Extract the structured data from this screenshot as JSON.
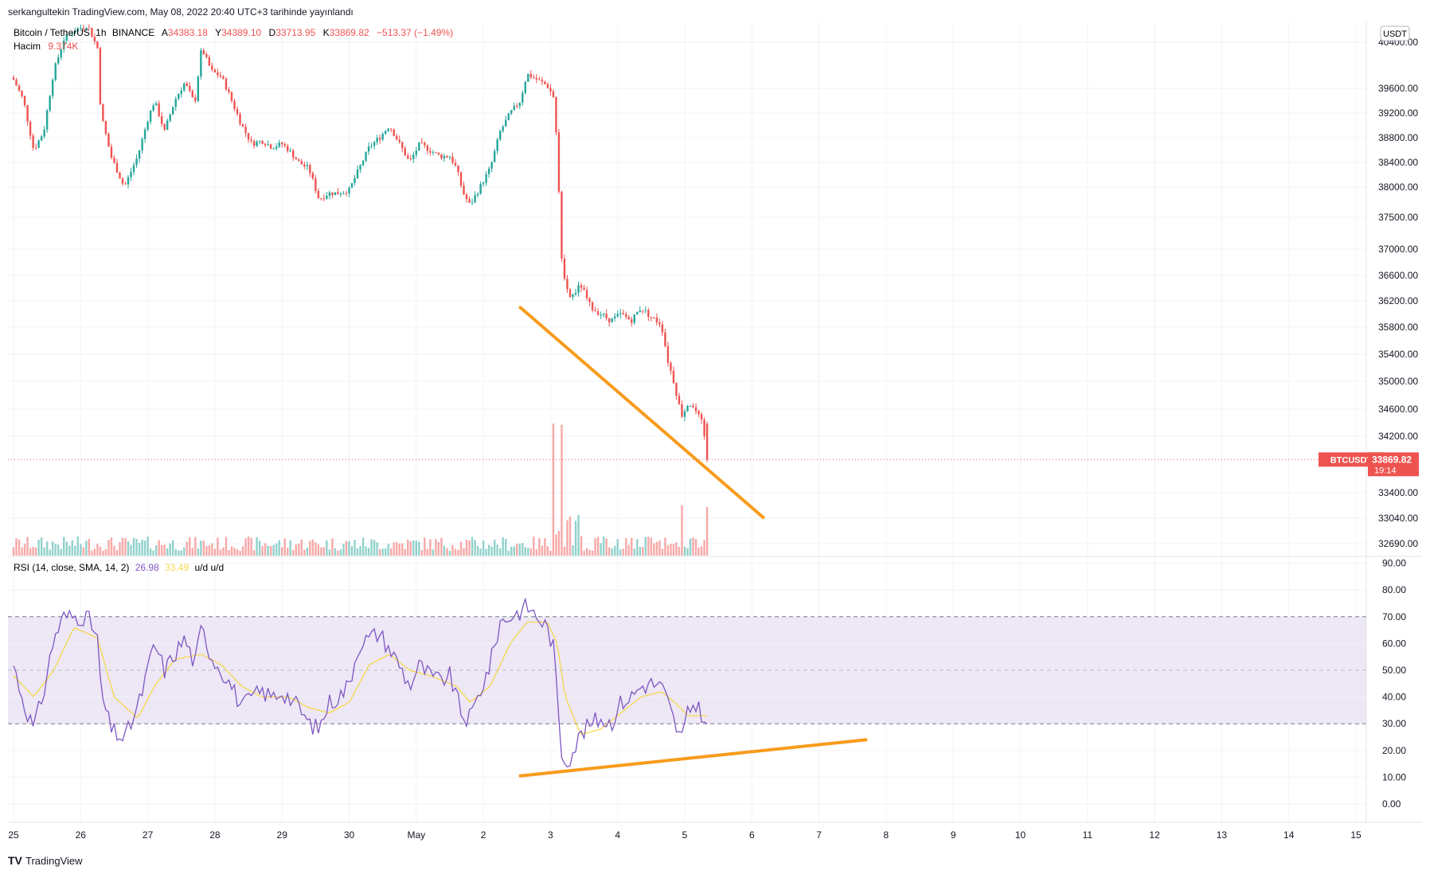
{
  "header": {
    "published_by": "serkangultekin TradingView.com, May 08, 2022 20:40 UTC+3 tarihinde yayınlandı"
  },
  "legend": {
    "symbol": "Bitcoin / TetherUS",
    "interval": "1h",
    "exchange": "BINANCE",
    "open_label": "A",
    "open": "34383.18",
    "high_label": "Y",
    "high": "34389.10",
    "low_label": "D",
    "low": "33713.95",
    "close_label": "K",
    "close": "33869.82",
    "change": "−513.37 (−1.49%)",
    "volume_label": "Hacim",
    "volume": "9.374K"
  },
  "rsi_legend": {
    "name": "RSI (14, close, SMA, 14, 2)",
    "rsi": "26.98",
    "sma": "33.49",
    "extra": "u/d u/d"
  },
  "currency_badge": "USDT",
  "price_tag": {
    "symbol": "BTCUSDT",
    "price": "33869.82",
    "countdown": "19:14"
  },
  "footer": {
    "brand": "TradingView",
    "logo": "tradingview-logo"
  },
  "colors": {
    "up": "#26a69a",
    "down": "#ef5350",
    "rsi": "#7e57c2",
    "rsi_sma": "#f5d94a",
    "trendline": "#f89b1c",
    "rsi_band": "#ede7f6"
  },
  "chart_data": [
    {
      "type": "candlestick",
      "title": "Bitcoin / TetherUS, 1h, BINANCE",
      "y_ticks": [
        "40400.00",
        "39600.00",
        "39200.00",
        "38800.00",
        "38400.00",
        "38000.00",
        "37500.00",
        "37000.00",
        "36600.00",
        "36200.00",
        "35800.00",
        "35400.00",
        "35000.00",
        "34600.00",
        "34200.00",
        "33400.00",
        "33040.00",
        "32690.00"
      ],
      "y_tick_values": [
        40400,
        39600,
        39200,
        38800,
        38400,
        38000,
        37500,
        37000,
        36600,
        36200,
        35800,
        35400,
        35000,
        34600,
        34200,
        33400,
        33040,
        32690
      ],
      "x_ticks": [
        "25",
        "26",
        "27",
        "28",
        "29",
        "30",
        "May",
        "2",
        "3",
        "4",
        "5",
        "6",
        "7",
        "8",
        "9",
        "10",
        "11",
        "12",
        "13",
        "14",
        "15"
      ],
      "price_path": [
        [
          0,
          39750
        ],
        [
          0.15,
          39400
        ],
        [
          0.3,
          38600
        ],
        [
          0.45,
          38900
        ],
        [
          0.6,
          39900
        ],
        [
          0.75,
          40450
        ],
        [
          0.9,
          40600
        ],
        [
          1.1,
          40700
        ],
        [
          1.25,
          40300
        ],
        [
          1.3,
          39200
        ],
        [
          1.45,
          38500
        ],
        [
          1.65,
          38000
        ],
        [
          1.85,
          38500
        ],
        [
          2.0,
          39100
        ],
        [
          2.1,
          39400
        ],
        [
          2.25,
          38900
        ],
        [
          2.4,
          39400
        ],
        [
          2.55,
          39700
        ],
        [
          2.7,
          39350
        ],
        [
          2.8,
          40300
        ],
        [
          2.95,
          39900
        ],
        [
          3.1,
          39800
        ],
        [
          3.25,
          39400
        ],
        [
          3.4,
          39000
        ],
        [
          3.55,
          38700
        ],
        [
          3.7,
          38750
        ],
        [
          3.85,
          38650
        ],
        [
          4.0,
          38700
        ],
        [
          4.1,
          38600
        ],
        [
          4.25,
          38400
        ],
        [
          4.4,
          38300
        ],
        [
          4.55,
          37800
        ],
        [
          4.7,
          37900
        ],
        [
          4.85,
          37900
        ],
        [
          5.0,
          37950
        ],
        [
          5.15,
          38300
        ],
        [
          5.3,
          38650
        ],
        [
          5.45,
          38800
        ],
        [
          5.6,
          39000
        ],
        [
          5.75,
          38700
        ],
        [
          5.9,
          38400
        ],
        [
          6.05,
          38700
        ],
        [
          6.2,
          38600
        ],
        [
          6.35,
          38500
        ],
        [
          6.5,
          38500
        ],
        [
          6.6,
          38300
        ],
        [
          6.7,
          37900
        ],
        [
          6.8,
          37700
        ],
        [
          6.95,
          38000
        ],
        [
          7.1,
          38300
        ],
        [
          7.25,
          38900
        ],
        [
          7.4,
          39200
        ],
        [
          7.55,
          39400
        ],
        [
          7.65,
          39850
        ],
        [
          7.8,
          39750
        ],
        [
          7.95,
          39650
        ],
        [
          8.05,
          39450
        ],
        [
          8.1,
          38600
        ],
        [
          8.16,
          36950
        ],
        [
          8.22,
          36400
        ],
        [
          8.3,
          36250
        ],
        [
          8.45,
          36450
        ],
        [
          8.6,
          36100
        ],
        [
          8.75,
          36000
        ],
        [
          8.9,
          35900
        ],
        [
          9.05,
          36000
        ],
        [
          9.2,
          35900
        ],
        [
          9.35,
          36100
        ],
        [
          9.5,
          35950
        ],
        [
          9.65,
          35850
        ],
        [
          9.75,
          35300
        ],
        [
          9.85,
          34950
        ],
        [
          9.95,
          34500
        ],
        [
          10.05,
          34700
        ],
        [
          10.15,
          34600
        ],
        [
          10.25,
          34400
        ],
        [
          10.35,
          33870
        ]
      ],
      "volume_peaks": [
        [
          8.05,
          "high"
        ],
        [
          8.16,
          "high"
        ],
        [
          9.95,
          "medium"
        ],
        [
          10.35,
          "medium"
        ]
      ],
      "trendline": {
        "from": [
          7.55,
          36100
        ],
        "to": [
          11.17,
          33050
        ],
        "color": "#f89b1c"
      },
      "last_price": 33869.82
    },
    {
      "type": "line",
      "title": "RSI (14, close, SMA, 14, 2)",
      "y_ticks": [
        "90.00",
        "80.00",
        "70.00",
        "60.00",
        "50.00",
        "40.00",
        "30.00",
        "20.00",
        "10.00",
        "0.00"
      ],
      "y_tick_values": [
        90,
        80,
        70,
        60,
        50,
        40,
        30,
        20,
        10,
        0
      ],
      "band": [
        30,
        70
      ],
      "midline": 50,
      "series": [
        {
          "name": "RSI",
          "color": "#7e57c2",
          "points": [
            [
              0,
              52
            ],
            [
              0.15,
              38
            ],
            [
              0.3,
              28
            ],
            [
              0.45,
              42
            ],
            [
              0.6,
              62
            ],
            [
              0.75,
              70
            ],
            [
              0.9,
              70
            ],
            [
              1.1,
              70
            ],
            [
              1.25,
              62
            ],
            [
              1.3,
              42
            ],
            [
              1.45,
              28
            ],
            [
              1.65,
              24
            ],
            [
              1.85,
              36
            ],
            [
              2.0,
              50
            ],
            [
              2.1,
              60
            ],
            [
              2.25,
              50
            ],
            [
              2.4,
              56
            ],
            [
              2.55,
              62
            ],
            [
              2.7,
              52
            ],
            [
              2.8,
              66
            ],
            [
              2.95,
              55
            ],
            [
              3.1,
              50
            ],
            [
              3.25,
              44
            ],
            [
              3.4,
              36
            ],
            [
              3.55,
              40
            ],
            [
              3.7,
              42
            ],
            [
              3.85,
              40
            ],
            [
              4.0,
              42
            ],
            [
              4.1,
              40
            ],
            [
              4.25,
              36
            ],
            [
              4.4,
              30
            ],
            [
              4.55,
              28
            ],
            [
              4.7,
              38
            ],
            [
              4.85,
              40
            ],
            [
              5.0,
              45
            ],
            [
              5.15,
              60
            ],
            [
              5.3,
              62
            ],
            [
              5.45,
              64
            ],
            [
              5.6,
              58
            ],
            [
              5.75,
              52
            ],
            [
              5.9,
              44
            ],
            [
              6.05,
              52
            ],
            [
              6.2,
              48
            ],
            [
              6.35,
              46
            ],
            [
              6.5,
              48
            ],
            [
              6.6,
              40
            ],
            [
              6.7,
              32
            ],
            [
              6.8,
              32
            ],
            [
              6.95,
              42
            ],
            [
              7.1,
              52
            ],
            [
              7.25,
              68
            ],
            [
              7.4,
              70
            ],
            [
              7.55,
              72
            ],
            [
              7.65,
              74
            ],
            [
              7.8,
              70
            ],
            [
              7.95,
              66
            ],
            [
              8.05,
              58
            ],
            [
              8.1,
              40
            ],
            [
              8.16,
              20
            ],
            [
              8.22,
              16
            ],
            [
              8.3,
              18
            ],
            [
              8.45,
              26
            ],
            [
              8.6,
              30
            ],
            [
              8.75,
              32
            ],
            [
              8.9,
              30
            ],
            [
              9.05,
              38
            ],
            [
              9.2,
              40
            ],
            [
              9.35,
              44
            ],
            [
              9.5,
              45
            ],
            [
              9.65,
              44
            ],
            [
              9.75,
              38
            ],
            [
              9.85,
              30
            ],
            [
              9.95,
              24
            ],
            [
              10.05,
              34
            ],
            [
              10.15,
              38
            ],
            [
              10.25,
              34
            ],
            [
              10.35,
              27
            ]
          ]
        },
        {
          "name": "SMA",
          "color": "#f5d94a",
          "points": [
            [
              0,
              48
            ],
            [
              0.3,
              40
            ],
            [
              0.6,
              50
            ],
            [
              0.9,
              66
            ],
            [
              1.25,
              62
            ],
            [
              1.5,
              40
            ],
            [
              1.85,
              32
            ],
            [
              2.1,
              44
            ],
            [
              2.4,
              54
            ],
            [
              2.8,
              56
            ],
            [
              3.1,
              52
            ],
            [
              3.4,
              44
            ],
            [
              3.7,
              40
            ],
            [
              4.1,
              40
            ],
            [
              4.4,
              36
            ],
            [
              4.7,
              34
            ],
            [
              5.0,
              38
            ],
            [
              5.3,
              52
            ],
            [
              5.6,
              56
            ],
            [
              5.9,
              50
            ],
            [
              6.2,
              48
            ],
            [
              6.6,
              44
            ],
            [
              6.8,
              38
            ],
            [
              7.1,
              44
            ],
            [
              7.4,
              60
            ],
            [
              7.65,
              68
            ],
            [
              7.95,
              68
            ],
            [
              8.1,
              60
            ],
            [
              8.22,
              40
            ],
            [
              8.45,
              26
            ],
            [
              8.75,
              28
            ],
            [
              9.05,
              34
            ],
            [
              9.35,
              40
            ],
            [
              9.65,
              42
            ],
            [
              9.85,
              38
            ],
            [
              10.05,
              33
            ],
            [
              10.35,
              33
            ]
          ]
        }
      ],
      "trendline": {
        "from": [
          7.55,
          10.5
        ],
        "to": [
          12.7,
          24
        ],
        "color": "#f89b1c"
      }
    }
  ]
}
